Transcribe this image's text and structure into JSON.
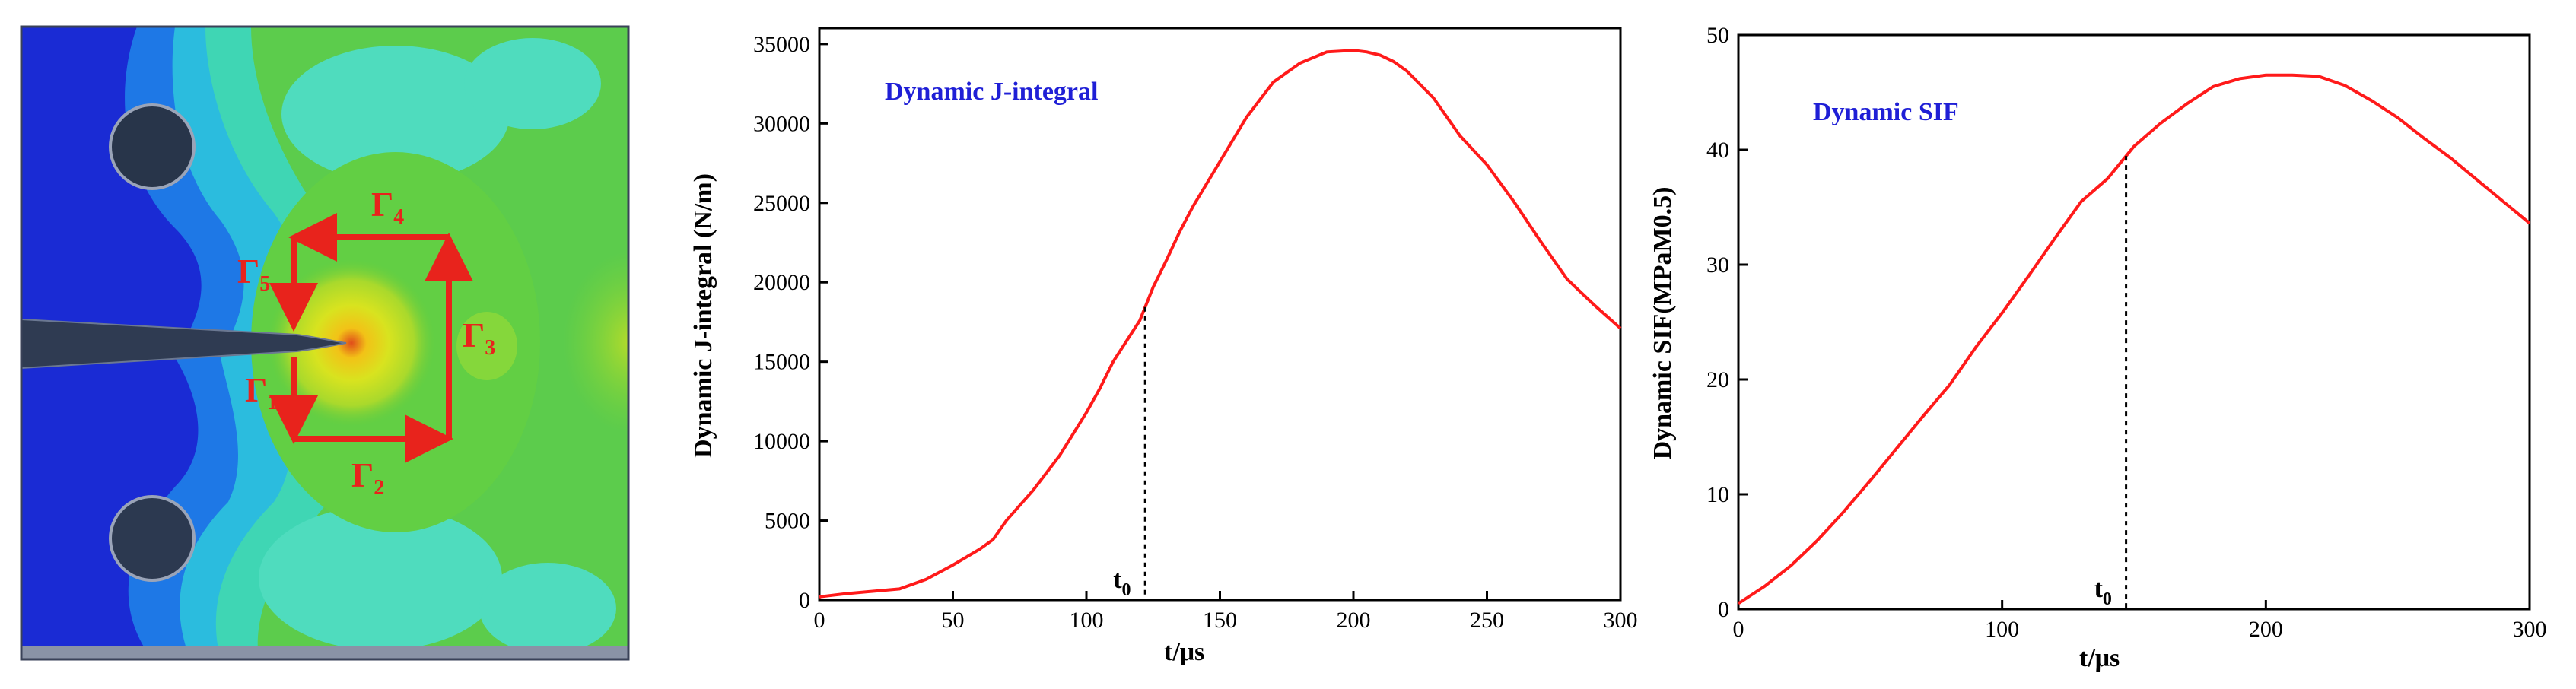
{
  "colors": {
    "curve": "#ff1a1a",
    "contour_arrows": "#e8231c",
    "inset_label": "#1f1fd6"
  },
  "figure_a": {
    "contour_labels": [
      {
        "symbol": "Γ",
        "sub": "1"
      },
      {
        "symbol": "Γ",
        "sub": "2"
      },
      {
        "symbol": "Γ",
        "sub": "3"
      },
      {
        "symbol": "Γ",
        "sub": "4"
      },
      {
        "symbol": "Γ",
        "sub": "5"
      }
    ]
  },
  "chart_data": [
    {
      "type": "line",
      "title": "Dynamic J-integral",
      "xlabel": "t/μs",
      "ylabel": "Dynamic J-integral (N/m)",
      "xlim": [
        0,
        300
      ],
      "ylim": [
        0,
        36000
      ],
      "xticks": [
        0,
        50,
        100,
        150,
        200,
        250,
        300
      ],
      "yticks": [
        0,
        5000,
        10000,
        15000,
        20000,
        25000,
        30000,
        35000
      ],
      "marker": {
        "label": "t",
        "sub": "0",
        "x": 122
      },
      "grid": false,
      "x": [
        0,
        5,
        10,
        20,
        30,
        40,
        50,
        60,
        65,
        70,
        80,
        90,
        100,
        105,
        110,
        115,
        120,
        125,
        130,
        135,
        140,
        150,
        160,
        170,
        180,
        190,
        200,
        205,
        210,
        215,
        220,
        230,
        240,
        250,
        260,
        270,
        280,
        290,
        300
      ],
      "y": [
        200,
        300,
        400,
        550,
        700,
        1300,
        2200,
        3200,
        3800,
        5000,
        6900,
        9100,
        11800,
        13300,
        15000,
        16300,
        17600,
        19700,
        21400,
        23200,
        24800,
        27600,
        30400,
        32600,
        33800,
        34500,
        34600,
        34500,
        34300,
        33900,
        33300,
        31600,
        29200,
        27400,
        25100,
        22600,
        20200,
        18600,
        17100
      ]
    },
    {
      "type": "line",
      "title": "Dynamic SIF",
      "xlabel": "t/μs",
      "ylabel": "Dynamic SIF(MPaM0.5)",
      "xlim": [
        0,
        300
      ],
      "ylim": [
        0,
        50
      ],
      "xticks": [
        0,
        100,
        200,
        300
      ],
      "yticks": [
        0,
        10,
        20,
        30,
        40,
        50
      ],
      "marker": {
        "label": "t",
        "sub": "0",
        "x": 147
      },
      "grid": false,
      "x": [
        0,
        10,
        20,
        30,
        40,
        50,
        60,
        70,
        80,
        90,
        100,
        110,
        120,
        130,
        140,
        150,
        160,
        170,
        180,
        190,
        200,
        210,
        220,
        230,
        240,
        250,
        260,
        270,
        280,
        290,
        300
      ],
      "y": [
        0.5,
        2.0,
        3.8,
        6.0,
        8.5,
        11.2,
        14.0,
        16.8,
        19.5,
        22.8,
        25.8,
        29.0,
        32.3,
        35.5,
        37.5,
        40.3,
        42.3,
        44.0,
        45.5,
        46.2,
        46.5,
        46.5,
        46.4,
        45.6,
        44.3,
        42.8,
        41.0,
        39.3,
        37.4,
        35.5,
        33.6
      ]
    }
  ]
}
